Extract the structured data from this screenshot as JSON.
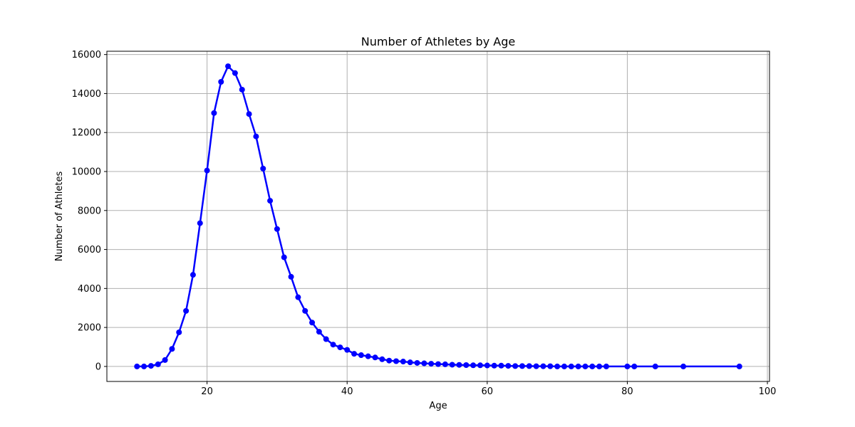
{
  "chart_data": {
    "type": "line",
    "title": "Number of Athletes by Age",
    "xlabel": "Age",
    "ylabel": "Number of Athletes",
    "xlim": [
      5.7,
      100.3
    ],
    "ylim": [
      -770,
      16170
    ],
    "xticks": [
      20,
      40,
      60,
      80,
      100
    ],
    "yticks": [
      0,
      2000,
      4000,
      6000,
      8000,
      10000,
      12000,
      14000,
      16000
    ],
    "grid": true,
    "line_color": "#0000ff",
    "series": [
      {
        "x": [
          10,
          11,
          12,
          13,
          14,
          15,
          16,
          17,
          18,
          19,
          20,
          21,
          22,
          23,
          24,
          25,
          26,
          27,
          28,
          29,
          30,
          31,
          32,
          33,
          34,
          35,
          36,
          37,
          38,
          39,
          40,
          41,
          42,
          43,
          44,
          45,
          46,
          47,
          48,
          49,
          50,
          51,
          52,
          53,
          54,
          55,
          56,
          57,
          58,
          59,
          60,
          61,
          62,
          63,
          64,
          65,
          66,
          67,
          68,
          69,
          70,
          71,
          72,
          73,
          74,
          75,
          76,
          77,
          80,
          81,
          84,
          88,
          96
        ],
        "values": [
          0,
          0,
          30,
          110,
          330,
          900,
          1750,
          2850,
          4700,
          7350,
          10050,
          13000,
          14600,
          15400,
          15050,
          14200,
          12950,
          11800,
          10150,
          8500,
          7050,
          5600,
          4600,
          3550,
          2850,
          2250,
          1780,
          1400,
          1120,
          980,
          850,
          650,
          580,
          520,
          460,
          370,
          300,
          270,
          250,
          210,
          180,
          160,
          140,
          120,
          110,
          90,
          80,
          70,
          60,
          60,
          50,
          40,
          40,
          30,
          20,
          20,
          20,
          10,
          10,
          10,
          0,
          0,
          0,
          0,
          0,
          0,
          0,
          0,
          0,
          0,
          0,
          0,
          0
        ]
      }
    ]
  }
}
